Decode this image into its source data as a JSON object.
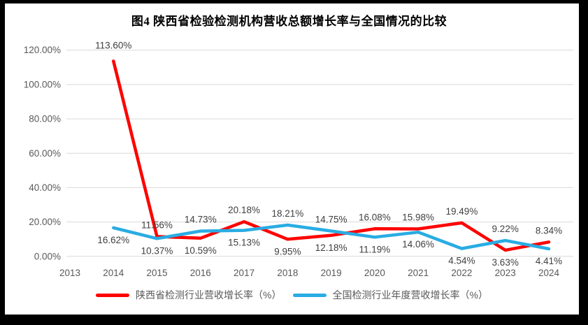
{
  "frame": {
    "border_color": "#000000",
    "background": "#ffffff"
  },
  "chart_data": {
    "type": "line",
    "title": "图4 陕西省检验检测机构营收总额增长率与全国情况的比较",
    "categories": [
      "2013",
      "2014",
      "2015",
      "2016",
      "2017",
      "2018",
      "2019",
      "2020",
      "2021",
      "2022",
      "2023",
      "2024"
    ],
    "series": [
      {
        "name": "陕西省检测行业营收增长率（%）",
        "color": "#FE0000",
        "values": [
          null,
          113.6,
          11.56,
          10.59,
          20.18,
          9.95,
          12.18,
          16.08,
          15.98,
          19.49,
          3.63,
          8.34
        ],
        "labels": [
          null,
          "113.60%",
          "11.56%",
          "10.59%",
          "20.18%",
          "9.95%",
          "12.18%",
          "16.08%",
          "15.98%",
          "19.49%",
          "3.63%",
          "8.34%"
        ],
        "label_positions": [
          null,
          "above",
          "above",
          "below",
          "above",
          "below",
          "below",
          "above",
          "above",
          "above",
          "below",
          "above"
        ]
      },
      {
        "name": "全国检测行业年度营收增长率（%）",
        "color": "#29ACE3",
        "values": [
          null,
          16.62,
          10.37,
          14.73,
          15.13,
          18.21,
          14.75,
          11.19,
          14.06,
          4.54,
          9.22,
          4.41
        ],
        "labels": [
          null,
          "16.62%",
          "10.37%",
          "14.73%",
          "15.13%",
          "18.21%",
          "14.75%",
          "11.19%",
          "14.06%",
          "4.54%",
          "9.22%",
          "4.41%"
        ],
        "label_positions": [
          null,
          "below",
          "below",
          "above",
          "below",
          "above",
          "above",
          "below",
          "below",
          "below",
          "above",
          "below"
        ]
      }
    ],
    "y_axis": {
      "ticks": [
        "120.00%",
        "100.00%",
        "80.00%",
        "60.00%",
        "40.00%",
        "20.00%",
        "0.00%"
      ],
      "min": 0,
      "max": 120,
      "step": 20
    },
    "grid": true,
    "legend_position": "bottom",
    "styles": {
      "grid_color": "#D9D9D9",
      "axis_text_color": "#595959",
      "data_label_color": "#3F3F3F"
    }
  }
}
